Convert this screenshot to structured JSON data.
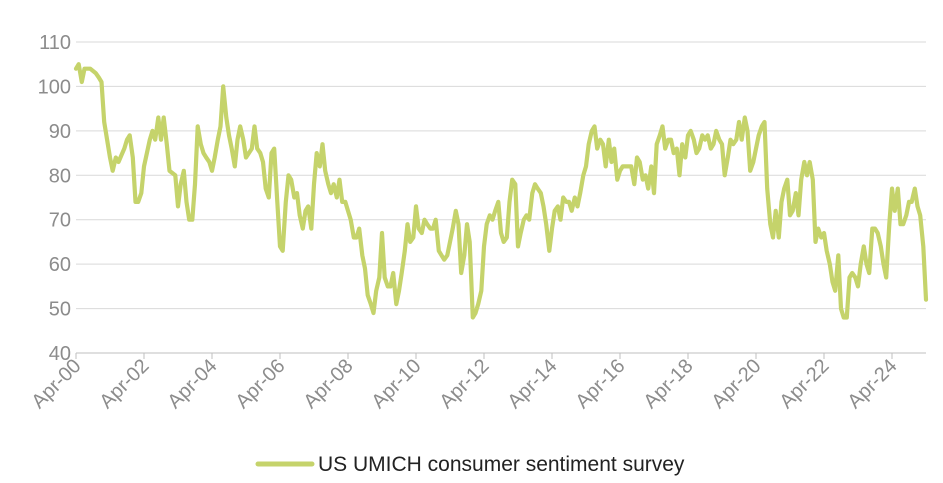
{
  "chart_data": {
    "type": "line",
    "title": "",
    "xlabel": "",
    "ylabel": "",
    "ylim": [
      40,
      110
    ],
    "yticks": [
      40,
      50,
      60,
      70,
      80,
      90,
      100,
      110
    ],
    "xlim": [
      2000.25,
      2025.25
    ],
    "xticks": [
      {
        "label": "Apr-00",
        "t": 2000.25
      },
      {
        "label": "Apr-02",
        "t": 2002.25
      },
      {
        "label": "Apr-04",
        "t": 2004.25
      },
      {
        "label": "Apr-06",
        "t": 2006.25
      },
      {
        "label": "Apr-08",
        "t": 2008.25
      },
      {
        "label": "Apr-10",
        "t": 2010.25
      },
      {
        "label": "Apr-12",
        "t": 2012.25
      },
      {
        "label": "Apr-14",
        "t": 2014.25
      },
      {
        "label": "Apr-16",
        "t": 2016.25
      },
      {
        "label": "Apr-18",
        "t": 2018.25
      },
      {
        "label": "Apr-20",
        "t": 2020.25
      },
      {
        "label": "Apr-22",
        "t": 2022.25
      },
      {
        "label": "Apr-24",
        "t": 2024.25
      }
    ],
    "grid": true,
    "legend_position": "bottom",
    "series": [
      {
        "name": "US UMICH consumer sentiment survey",
        "color": "#c5d36b",
        "points": [
          [
            2000.25,
            104
          ],
          [
            2000.33,
            105
          ],
          [
            2000.42,
            101
          ],
          [
            2000.5,
            104
          ],
          [
            2000.67,
            104
          ],
          [
            2000.83,
            103
          ],
          [
            2000.92,
            102
          ],
          [
            2001.0,
            101
          ],
          [
            2001.08,
            92
          ],
          [
            2001.25,
            84
          ],
          [
            2001.33,
            81
          ],
          [
            2001.42,
            84
          ],
          [
            2001.5,
            83
          ],
          [
            2001.67,
            86
          ],
          [
            2001.75,
            88
          ],
          [
            2001.83,
            89
          ],
          [
            2001.92,
            84
          ],
          [
            2002.0,
            74
          ],
          [
            2002.08,
            74
          ],
          [
            2002.17,
            76
          ],
          [
            2002.25,
            82
          ],
          [
            2002.42,
            88
          ],
          [
            2002.5,
            90
          ],
          [
            2002.58,
            88
          ],
          [
            2002.67,
            93
          ],
          [
            2002.75,
            88
          ],
          [
            2002.83,
            93
          ],
          [
            2002.92,
            87
          ],
          [
            2003.0,
            81
          ],
          [
            2003.17,
            80
          ],
          [
            2003.25,
            73
          ],
          [
            2003.33,
            78
          ],
          [
            2003.42,
            81
          ],
          [
            2003.5,
            74
          ],
          [
            2003.58,
            70
          ],
          [
            2003.67,
            70
          ],
          [
            2003.75,
            78
          ],
          [
            2003.83,
            91
          ],
          [
            2003.92,
            87
          ],
          [
            2004.0,
            85
          ],
          [
            2004.08,
            84
          ],
          [
            2004.17,
            83
          ],
          [
            2004.25,
            81
          ],
          [
            2004.33,
            84
          ],
          [
            2004.42,
            88
          ],
          [
            2004.5,
            91
          ],
          [
            2004.58,
            100
          ],
          [
            2004.67,
            93
          ],
          [
            2004.75,
            89
          ],
          [
            2004.83,
            86
          ],
          [
            2004.92,
            82
          ],
          [
            2005.0,
            88
          ],
          [
            2005.08,
            91
          ],
          [
            2005.17,
            88
          ],
          [
            2005.25,
            84
          ],
          [
            2005.42,
            86
          ],
          [
            2005.5,
            91
          ],
          [
            2005.58,
            86
          ],
          [
            2005.67,
            85
          ],
          [
            2005.75,
            83
          ],
          [
            2005.83,
            77
          ],
          [
            2005.92,
            75
          ],
          [
            2006.0,
            85
          ],
          [
            2006.08,
            86
          ],
          [
            2006.17,
            74
          ],
          [
            2006.25,
            64
          ],
          [
            2006.33,
            63
          ],
          [
            2006.42,
            74
          ],
          [
            2006.5,
            80
          ],
          [
            2006.58,
            79
          ],
          [
            2006.67,
            75
          ],
          [
            2006.75,
            76
          ],
          [
            2006.83,
            71
          ],
          [
            2006.92,
            68
          ],
          [
            2007.0,
            72
          ],
          [
            2007.08,
            73
          ],
          [
            2007.17,
            68
          ],
          [
            2007.25,
            78
          ],
          [
            2007.33,
            85
          ],
          [
            2007.42,
            82
          ],
          [
            2007.5,
            87
          ],
          [
            2007.58,
            81
          ],
          [
            2007.67,
            78
          ],
          [
            2007.75,
            76
          ],
          [
            2007.83,
            78
          ],
          [
            2007.92,
            75
          ],
          [
            2008.0,
            79
          ],
          [
            2008.08,
            74
          ],
          [
            2008.17,
            74
          ],
          [
            2008.25,
            72
          ],
          [
            2008.33,
            70
          ],
          [
            2008.42,
            66
          ],
          [
            2008.5,
            66
          ],
          [
            2008.58,
            68
          ],
          [
            2008.67,
            62
          ],
          [
            2008.75,
            59
          ],
          [
            2008.83,
            53
          ],
          [
            2008.92,
            51
          ],
          [
            2009.0,
            49
          ],
          [
            2009.08,
            54
          ],
          [
            2009.17,
            57
          ],
          [
            2009.25,
            67
          ],
          [
            2009.33,
            57
          ],
          [
            2009.42,
            55
          ],
          [
            2009.5,
            55
          ],
          [
            2009.58,
            58
          ],
          [
            2009.67,
            51
          ],
          [
            2009.75,
            54
          ],
          [
            2009.83,
            58
          ],
          [
            2009.92,
            63
          ],
          [
            2010.0,
            69
          ],
          [
            2010.08,
            65
          ],
          [
            2010.17,
            66
          ],
          [
            2010.25,
            73
          ],
          [
            2010.33,
            68
          ],
          [
            2010.42,
            67
          ],
          [
            2010.5,
            70
          ],
          [
            2010.58,
            69
          ],
          [
            2010.67,
            68
          ],
          [
            2010.75,
            68
          ],
          [
            2010.83,
            70
          ],
          [
            2010.92,
            63
          ],
          [
            2011.0,
            62
          ],
          [
            2011.08,
            61
          ],
          [
            2011.17,
            62
          ],
          [
            2011.25,
            65
          ],
          [
            2011.33,
            68
          ],
          [
            2011.42,
            72
          ],
          [
            2011.5,
            69
          ],
          [
            2011.58,
            58
          ],
          [
            2011.67,
            62
          ],
          [
            2011.75,
            69
          ],
          [
            2011.83,
            65
          ],
          [
            2011.92,
            48
          ],
          [
            2012.0,
            49
          ],
          [
            2012.08,
            51
          ],
          [
            2012.17,
            54
          ],
          [
            2012.25,
            64
          ],
          [
            2012.33,
            69
          ],
          [
            2012.42,
            71
          ],
          [
            2012.5,
            70
          ],
          [
            2012.58,
            72
          ],
          [
            2012.67,
            74
          ],
          [
            2012.75,
            67
          ],
          [
            2012.83,
            65
          ],
          [
            2012.92,
            66
          ],
          [
            2013.0,
            74
          ],
          [
            2013.08,
            79
          ],
          [
            2013.17,
            78
          ],
          [
            2013.25,
            64
          ],
          [
            2013.33,
            67
          ],
          [
            2013.42,
            70
          ],
          [
            2013.5,
            71
          ],
          [
            2013.58,
            70
          ],
          [
            2013.67,
            76
          ],
          [
            2013.75,
            78
          ],
          [
            2013.83,
            77
          ],
          [
            2013.92,
            76
          ],
          [
            2014.0,
            73
          ],
          [
            2014.08,
            69
          ],
          [
            2014.17,
            63
          ],
          [
            2014.25,
            68
          ],
          [
            2014.33,
            72
          ],
          [
            2014.42,
            73
          ],
          [
            2014.5,
            70
          ],
          [
            2014.58,
            75
          ],
          [
            2014.67,
            74
          ],
          [
            2014.75,
            74
          ],
          [
            2014.83,
            72
          ],
          [
            2014.92,
            75
          ],
          [
            2015.0,
            73
          ],
          [
            2015.08,
            76
          ],
          [
            2015.17,
            80
          ],
          [
            2015.25,
            82
          ],
          [
            2015.33,
            87
          ],
          [
            2015.42,
            90
          ],
          [
            2015.5,
            91
          ],
          [
            2015.58,
            86
          ],
          [
            2015.67,
            88
          ],
          [
            2015.75,
            87
          ],
          [
            2015.83,
            82
          ],
          [
            2015.92,
            88
          ],
          [
            2016.0,
            83
          ],
          [
            2016.08,
            86
          ],
          [
            2016.17,
            79
          ],
          [
            2016.25,
            81
          ],
          [
            2016.33,
            82
          ],
          [
            2016.42,
            82
          ],
          [
            2016.5,
            82
          ],
          [
            2016.58,
            82
          ],
          [
            2016.67,
            78
          ],
          [
            2016.75,
            84
          ],
          [
            2016.83,
            83
          ],
          [
            2016.92,
            79
          ],
          [
            2017.0,
            80
          ],
          [
            2017.08,
            77
          ],
          [
            2017.17,
            82
          ],
          [
            2017.25,
            76
          ],
          [
            2017.33,
            87
          ],
          [
            2017.42,
            89
          ],
          [
            2017.5,
            91
          ],
          [
            2017.58,
            86
          ],
          [
            2017.67,
            88
          ],
          [
            2017.75,
            88
          ],
          [
            2017.83,
            85
          ],
          [
            2017.92,
            86
          ],
          [
            2018.0,
            80
          ],
          [
            2018.08,
            87
          ],
          [
            2018.17,
            84
          ],
          [
            2018.25,
            89
          ],
          [
            2018.33,
            90
          ],
          [
            2018.42,
            88
          ],
          [
            2018.5,
            85
          ],
          [
            2018.58,
            86
          ],
          [
            2018.67,
            89
          ],
          [
            2018.75,
            88
          ],
          [
            2018.83,
            89
          ],
          [
            2018.92,
            86
          ],
          [
            2019.0,
            87
          ],
          [
            2019.08,
            90
          ],
          [
            2019.17,
            88
          ],
          [
            2019.25,
            87
          ],
          [
            2019.33,
            80
          ],
          [
            2019.42,
            84
          ],
          [
            2019.5,
            88
          ],
          [
            2019.58,
            87
          ],
          [
            2019.67,
            88
          ],
          [
            2019.75,
            92
          ],
          [
            2019.83,
            88
          ],
          [
            2019.92,
            93
          ],
          [
            2020.0,
            90
          ],
          [
            2020.08,
            81
          ],
          [
            2020.17,
            83
          ],
          [
            2020.25,
            86
          ],
          [
            2020.33,
            89
          ],
          [
            2020.42,
            91
          ],
          [
            2020.5,
            92
          ],
          [
            2020.58,
            77
          ],
          [
            2020.67,
            69
          ],
          [
            2020.75,
            66
          ],
          [
            2020.83,
            72
          ],
          [
            2020.92,
            66
          ],
          [
            2021.0,
            74
          ],
          [
            2021.08,
            77
          ],
          [
            2021.17,
            79
          ],
          [
            2021.25,
            71
          ],
          [
            2021.33,
            72
          ],
          [
            2021.42,
            76
          ],
          [
            2021.5,
            71
          ],
          [
            2021.58,
            79
          ],
          [
            2021.67,
            83
          ],
          [
            2021.75,
            80
          ],
          [
            2021.83,
            83
          ],
          [
            2021.92,
            79
          ],
          [
            2022.0,
            65
          ],
          [
            2022.08,
            68
          ],
          [
            2022.17,
            66
          ],
          [
            2022.25,
            67
          ],
          [
            2022.33,
            63
          ],
          [
            2022.42,
            60
          ],
          [
            2022.5,
            56
          ],
          [
            2022.58,
            54
          ],
          [
            2022.67,
            62
          ],
          [
            2022.75,
            50
          ],
          [
            2022.83,
            48
          ],
          [
            2022.92,
            48
          ],
          [
            2023.0,
            57
          ],
          [
            2023.08,
            58
          ],
          [
            2023.17,
            57
          ],
          [
            2023.25,
            55
          ],
          [
            2023.33,
            60
          ],
          [
            2023.42,
            64
          ],
          [
            2023.5,
            60
          ],
          [
            2023.58,
            58
          ],
          [
            2023.67,
            68
          ],
          [
            2023.75,
            68
          ],
          [
            2023.83,
            67
          ],
          [
            2023.92,
            64
          ],
          [
            2024.0,
            60
          ],
          [
            2024.08,
            57
          ],
          [
            2024.17,
            69
          ],
          [
            2024.25,
            77
          ],
          [
            2024.33,
            72
          ],
          [
            2024.42,
            77
          ],
          [
            2024.5,
            69
          ],
          [
            2024.58,
            69
          ],
          [
            2024.67,
            71
          ],
          [
            2024.75,
            74
          ],
          [
            2024.83,
            74
          ],
          [
            2024.92,
            77
          ],
          [
            2025.0,
            73
          ],
          [
            2025.08,
            71
          ],
          [
            2025.17,
            64
          ],
          [
            2025.25,
            52
          ]
        ]
      }
    ]
  }
}
